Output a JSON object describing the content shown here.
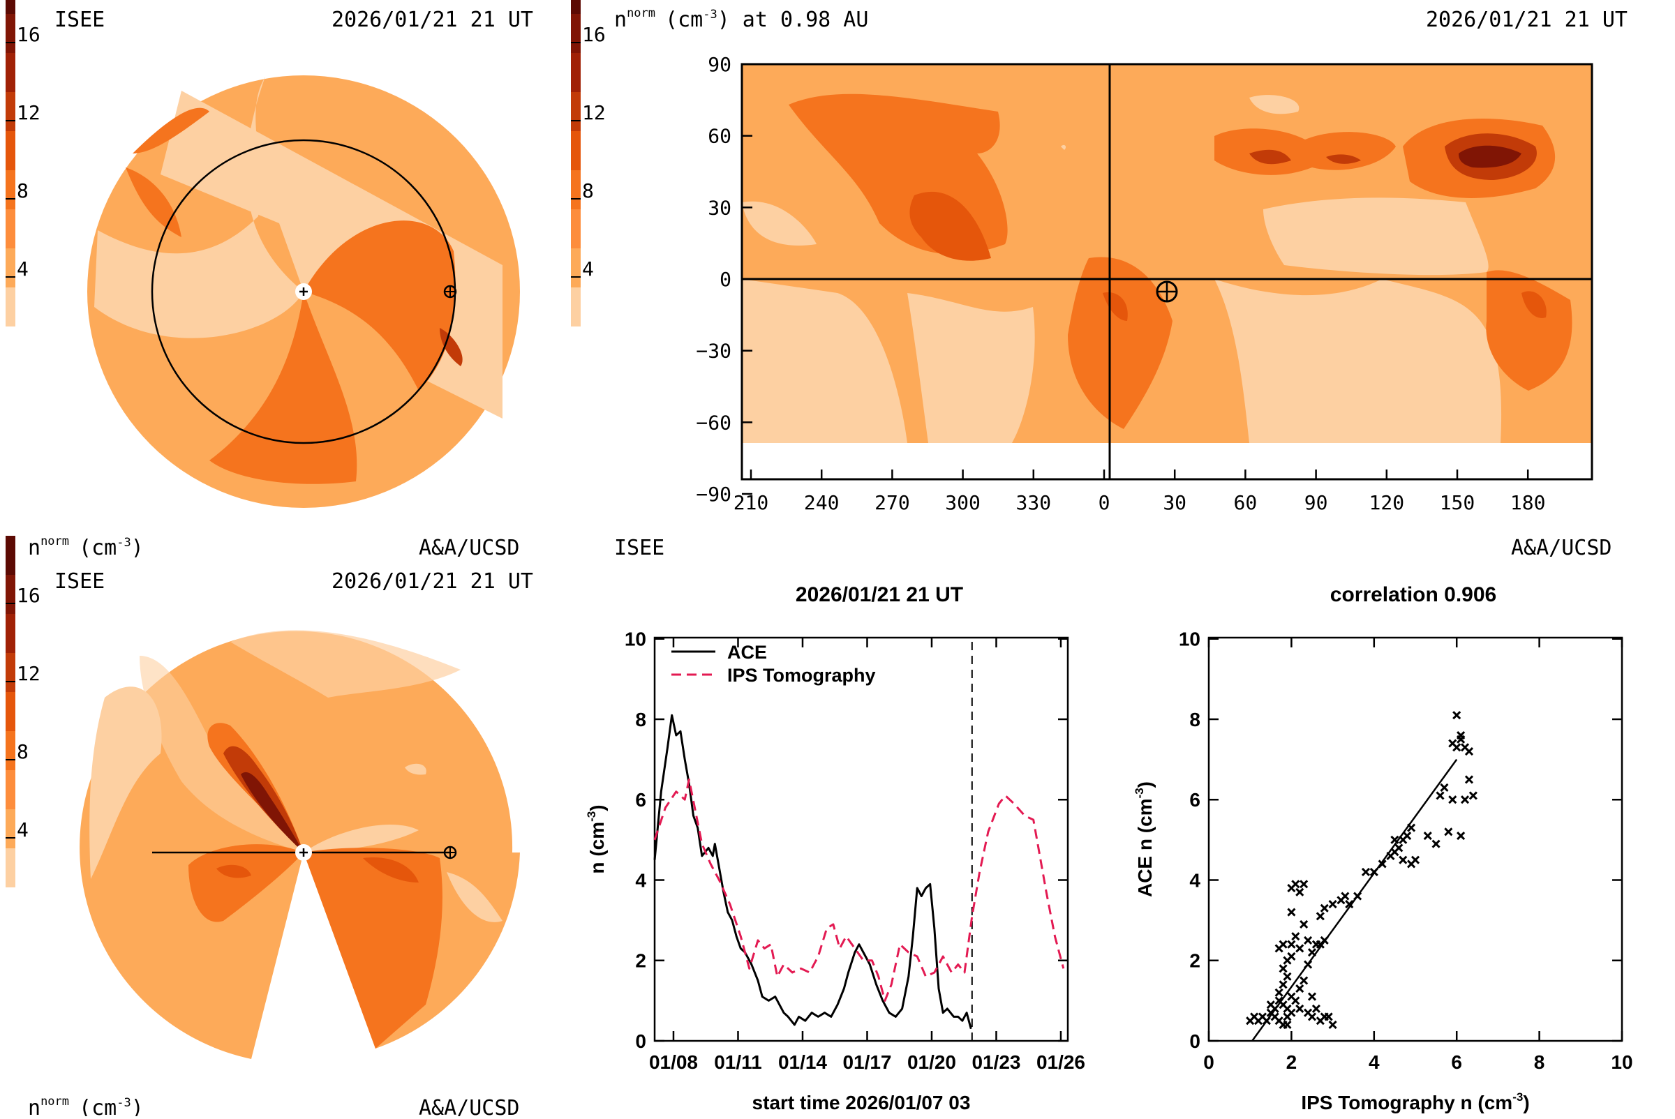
{
  "panels": {
    "ecliptic": {
      "institution": "ISEE",
      "timestamp": "2026/01/21 21 UT",
      "quantity_label": "n",
      "quantity_sup": "norm",
      "quantity_unit": "(cm",
      "quantity_unit_sup": "-3",
      "quantity_unit_close": ")",
      "credit": "A&A/UCSD"
    },
    "meridional": {
      "institution": "ISEE",
      "timestamp": "2026/01/21 21 UT",
      "quantity_label": "n",
      "quantity_sup": "norm",
      "quantity_unit": "(cm",
      "quantity_unit_sup": "-3",
      "quantity_unit_close": ")",
      "credit": "A&A/UCSD"
    },
    "synoptic": {
      "quantity_label": "n",
      "quantity_sup": "norm",
      "title_unit_open": "(cm",
      "title_unit_sup": "-3",
      "title_rest": ") at 0.98 AU",
      "timestamp": "2026/01/21 21 UT",
      "institution": "ISEE",
      "credit": "A&A/UCSD"
    }
  },
  "colorbar_ticks": [
    "16",
    "12",
    "8",
    "4"
  ],
  "colors": {
    "level_1": "#fdd0a2",
    "level_2": "#fdaa59",
    "level_3": "#fd8d3c",
    "level_4": "#f5741e",
    "level_5": "#e5560b",
    "level_6": "#c23b08",
    "level_7": "#a02106",
    "level_8": "#801505",
    "level_9": "#5c0a03",
    "level_10": "#360401",
    "ips_line": "#e31a52",
    "ace_line": "#000000"
  },
  "chart_data": [
    {
      "type": "line",
      "title": "2026/01/21 21 UT",
      "xlabel": "start time 2026/01/07 03",
      "ylabel_main": "n (cm",
      "ylabel_sup": "-3",
      "ylabel_close": ")",
      "ylim": [
        0,
        10
      ],
      "y_ticks": [
        "0",
        "2",
        "4",
        "6",
        "8",
        "10"
      ],
      "x_tick_labels": [
        "01/08",
        "01/11",
        "01/14",
        "01/17",
        "01/20",
        "01/23",
        "01/26"
      ],
      "x_tick_days": [
        0.875,
        3.875,
        6.875,
        9.875,
        12.875,
        15.875,
        18.875
      ],
      "xlim_days": [
        0,
        19.2
      ],
      "current_time_day": 14.75,
      "grid": false,
      "legend_position": "top-left",
      "series": [
        {
          "name": "ACE",
          "style": "solid",
          "points": [
            [
              0,
              4.5
            ],
            [
              0.3,
              6.2
            ],
            [
              0.6,
              7.3
            ],
            [
              0.8,
              8.1
            ],
            [
              1.0,
              7.6
            ],
            [
              1.2,
              7.7
            ],
            [
              1.4,
              7.0
            ],
            [
              1.6,
              6.4
            ],
            [
              1.8,
              5.6
            ],
            [
              2.0,
              5.3
            ],
            [
              2.2,
              4.6
            ],
            [
              2.5,
              4.8
            ],
            [
              2.7,
              4.6
            ],
            [
              2.8,
              4.9
            ],
            [
              3.0,
              4.3
            ],
            [
              3.2,
              3.7
            ],
            [
              3.4,
              3.2
            ],
            [
              3.6,
              3.0
            ],
            [
              3.8,
              2.6
            ],
            [
              4.0,
              2.3
            ],
            [
              4.2,
              2.2
            ],
            [
              4.5,
              1.9
            ],
            [
              4.8,
              1.5
            ],
            [
              5.0,
              1.1
            ],
            [
              5.3,
              1.0
            ],
            [
              5.6,
              1.1
            ],
            [
              5.8,
              0.9
            ],
            [
              6.0,
              0.7
            ],
            [
              6.2,
              0.6
            ],
            [
              6.5,
              0.4
            ],
            [
              6.7,
              0.6
            ],
            [
              7.0,
              0.5
            ],
            [
              7.3,
              0.7
            ],
            [
              7.6,
              0.6
            ],
            [
              7.9,
              0.7
            ],
            [
              8.2,
              0.6
            ],
            [
              8.5,
              0.9
            ],
            [
              8.8,
              1.3
            ],
            [
              9.0,
              1.7
            ],
            [
              9.3,
              2.2
            ],
            [
              9.5,
              2.4
            ],
            [
              9.8,
              2.1
            ],
            [
              10.0,
              1.9
            ],
            [
              10.3,
              1.4
            ],
            [
              10.6,
              1.0
            ],
            [
              10.9,
              0.7
            ],
            [
              11.2,
              0.6
            ],
            [
              11.5,
              0.8
            ],
            [
              11.8,
              1.6
            ],
            [
              12.0,
              2.6
            ],
            [
              12.2,
              3.8
            ],
            [
              12.4,
              3.6
            ],
            [
              12.6,
              3.8
            ],
            [
              12.8,
              3.9
            ],
            [
              13.0,
              2.8
            ],
            [
              13.2,
              1.3
            ],
            [
              13.4,
              0.7
            ],
            [
              13.6,
              0.8
            ],
            [
              13.9,
              0.6
            ],
            [
              14.1,
              0.6
            ],
            [
              14.3,
              0.5
            ],
            [
              14.5,
              0.7
            ],
            [
              14.7,
              0.3
            ]
          ]
        },
        {
          "name": "IPS Tomography",
          "style": "dashed",
          "points": [
            [
              0,
              5.0
            ],
            [
              0.5,
              5.8
            ],
            [
              1.0,
              6.2
            ],
            [
              1.4,
              6.0
            ],
            [
              1.6,
              6.5
            ],
            [
              1.9,
              5.7
            ],
            [
              2.2,
              4.9
            ],
            [
              2.6,
              4.4
            ],
            [
              3.0,
              4.0
            ],
            [
              3.5,
              3.4
            ],
            [
              4.0,
              2.6
            ],
            [
              4.4,
              1.8
            ],
            [
              4.8,
              2.5
            ],
            [
              5.1,
              2.3
            ],
            [
              5.4,
              2.4
            ],
            [
              5.7,
              1.6
            ],
            [
              6.0,
              1.9
            ],
            [
              6.4,
              1.7
            ],
            [
              6.8,
              1.8
            ],
            [
              7.2,
              1.7
            ],
            [
              7.6,
              2.1
            ],
            [
              8.0,
              2.8
            ],
            [
              8.3,
              2.9
            ],
            [
              8.6,
              2.3
            ],
            [
              8.9,
              2.6
            ],
            [
              9.3,
              2.3
            ],
            [
              9.7,
              2.0
            ],
            [
              10.1,
              2.0
            ],
            [
              10.4,
              1.6
            ],
            [
              10.7,
              1.0
            ],
            [
              11.0,
              1.4
            ],
            [
              11.4,
              2.4
            ],
            [
              11.8,
              2.2
            ],
            [
              12.2,
              2.1
            ],
            [
              12.6,
              1.6
            ],
            [
              13.0,
              1.7
            ],
            [
              13.4,
              2.1
            ],
            [
              13.8,
              1.7
            ],
            [
              14.1,
              1.9
            ],
            [
              14.4,
              1.7
            ],
            [
              14.75,
              3.1
            ],
            [
              15.1,
              4.2
            ],
            [
              15.5,
              5.2
            ],
            [
              16.0,
              5.9
            ],
            [
              16.3,
              6.1
            ],
            [
              16.7,
              5.9
            ],
            [
              17.2,
              5.6
            ],
            [
              17.6,
              5.5
            ],
            [
              18.2,
              3.7
            ],
            [
              18.6,
              2.6
            ],
            [
              19.0,
              1.8
            ]
          ]
        }
      ]
    },
    {
      "type": "scatter",
      "title": "correlation 0.906",
      "xlabel_main": "IPS Tomography n (cm",
      "xlabel_sup": "-3",
      "xlabel_close": ")",
      "ylabel_main": "ACE n (cm",
      "ylabel_sup": "-3",
      "ylabel_close": ")",
      "xlim": [
        0,
        10
      ],
      "ylim": [
        0,
        10
      ],
      "x_ticks": [
        "0",
        "2",
        "4",
        "6",
        "8",
        "10"
      ],
      "y_ticks": [
        "0",
        "2",
        "4",
        "6",
        "8",
        "10"
      ],
      "grid": false,
      "fit_line": [
        [
          1.05,
          0.0
        ],
        [
          6.0,
          7.0
        ]
      ],
      "points": [
        [
          1.0,
          0.5
        ],
        [
          1.1,
          0.6
        ],
        [
          1.2,
          0.5
        ],
        [
          1.3,
          0.6
        ],
        [
          1.4,
          0.5
        ],
        [
          1.5,
          0.7
        ],
        [
          1.6,
          0.6
        ],
        [
          1.7,
          0.5
        ],
        [
          1.8,
          0.4
        ],
        [
          1.9,
          0.4
        ],
        [
          1.9,
          0.6
        ],
        [
          1.5,
          0.9
        ],
        [
          1.6,
          0.8
        ],
        [
          1.7,
          1.0
        ],
        [
          1.8,
          0.9
        ],
        [
          1.9,
          0.8
        ],
        [
          2.0,
          0.7
        ],
        [
          1.7,
          1.2
        ],
        [
          1.8,
          1.4
        ],
        [
          1.9,
          1.6
        ],
        [
          2.0,
          1.1
        ],
        [
          2.1,
          1.0
        ],
        [
          2.2,
          0.8
        ],
        [
          1.8,
          1.8
        ],
        [
          1.9,
          2.0
        ],
        [
          2.0,
          2.1
        ],
        [
          1.7,
          2.3
        ],
        [
          1.8,
          2.4
        ],
        [
          2.0,
          2.4
        ],
        [
          2.1,
          2.6
        ],
        [
          2.2,
          2.3
        ],
        [
          2.0,
          3.2
        ],
        [
          2.0,
          3.8
        ],
        [
          2.1,
          3.9
        ],
        [
          2.2,
          3.7
        ],
        [
          2.3,
          3.9
        ],
        [
          2.3,
          2.9
        ],
        [
          2.4,
          2.5
        ],
        [
          2.5,
          2.2
        ],
        [
          2.4,
          1.9
        ],
        [
          2.3,
          1.5
        ],
        [
          2.2,
          1.3
        ],
        [
          2.5,
          1.1
        ],
        [
          2.6,
          0.8
        ],
        [
          2.4,
          0.7
        ],
        [
          2.5,
          0.6
        ],
        [
          2.7,
          0.5
        ],
        [
          2.8,
          0.6
        ],
        [
          2.9,
          0.6
        ],
        [
          3.0,
          0.4
        ],
        [
          2.6,
          2.4
        ],
        [
          2.7,
          2.4
        ],
        [
          2.8,
          2.5
        ],
        [
          2.7,
          3.1
        ],
        [
          2.8,
          3.3
        ],
        [
          3.0,
          3.4
        ],
        [
          3.2,
          3.5
        ],
        [
          3.3,
          3.6
        ],
        [
          3.4,
          3.4
        ],
        [
          3.6,
          3.6
        ],
        [
          3.8,
          4.2
        ],
        [
          4.0,
          4.2
        ],
        [
          4.2,
          4.4
        ],
        [
          4.4,
          4.6
        ],
        [
          4.5,
          4.7
        ],
        [
          4.5,
          5.0
        ],
        [
          4.6,
          4.8
        ],
        [
          4.7,
          5.0
        ],
        [
          4.8,
          5.1
        ],
        [
          4.9,
          5.3
        ],
        [
          4.7,
          4.5
        ],
        [
          4.9,
          4.4
        ],
        [
          5.0,
          4.5
        ],
        [
          5.3,
          5.1
        ],
        [
          5.5,
          4.9
        ],
        [
          5.8,
          5.2
        ],
        [
          5.6,
          6.1
        ],
        [
          5.9,
          6.0
        ],
        [
          6.2,
          6.0
        ],
        [
          6.3,
          6.5
        ],
        [
          6.4,
          6.1
        ],
        [
          6.1,
          5.1
        ],
        [
          5.9,
          7.4
        ],
        [
          6.0,
          7.3
        ],
        [
          6.1,
          7.6
        ],
        [
          6.1,
          7.5
        ],
        [
          6.0,
          8.1
        ],
        [
          6.2,
          7.3
        ],
        [
          6.3,
          7.2
        ],
        [
          5.7,
          6.3
        ]
      ]
    }
  ]
}
